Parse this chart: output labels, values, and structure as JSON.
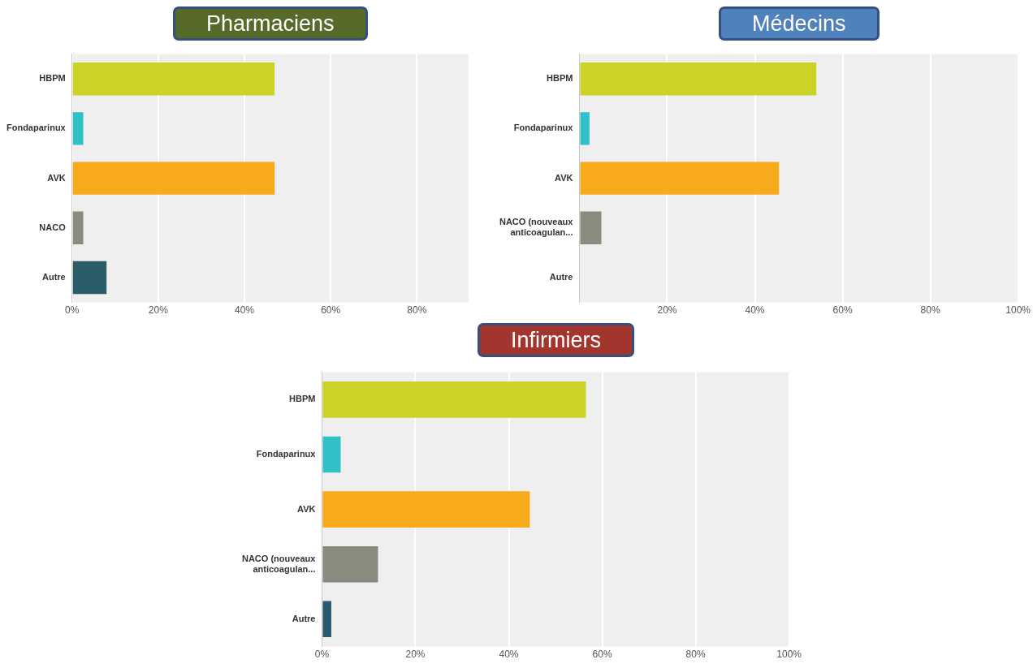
{
  "chart_data": [
    {
      "type": "bar",
      "orientation": "horizontal",
      "title": "Pharmaciens",
      "categories": [
        "HBPM",
        "Fondaparinux",
        "AVK",
        "NACO",
        "Autre"
      ],
      "values": [
        47,
        2.6,
        47,
        2.6,
        8
      ],
      "colors": [
        "#cbd324",
        "#31c0c5",
        "#f7aa1c",
        "#8b8a7f",
        "#2b5d68"
      ],
      "xlim": [
        0,
        92
      ],
      "xticks": [
        {
          "value": 0,
          "label": "0%"
        },
        {
          "value": 20,
          "label": "20%"
        },
        {
          "value": 40,
          "label": "40%"
        },
        {
          "value": 60,
          "label": "60%"
        },
        {
          "value": 80,
          "label": "80%"
        }
      ],
      "grid": "x"
    },
    {
      "type": "bar",
      "orientation": "horizontal",
      "title": "Médecins",
      "categories": [
        "HBPM",
        "Fondaparinux",
        "AVK",
        "NACO (nouveaux anticoagulan...",
        "Autre"
      ],
      "values": [
        54,
        2.3,
        45.5,
        5,
        0
      ],
      "colors": [
        "#cbd324",
        "#31c0c5",
        "#f7aa1c",
        "#8b8a7f",
        "#2b5d68"
      ],
      "xlim": [
        0,
        100
      ],
      "xticks": [
        {
          "value": 0,
          "label": null
        },
        {
          "value": 20,
          "label": "20%"
        },
        {
          "value": 40,
          "label": "40%"
        },
        {
          "value": 60,
          "label": "60%"
        },
        {
          "value": 80,
          "label": "80%"
        },
        {
          "value": 100,
          "label": "100%"
        }
      ],
      "grid": "x"
    },
    {
      "type": "bar",
      "orientation": "horizontal",
      "title": "Infirmiers",
      "categories": [
        "HBPM",
        "Fondaparinux",
        "AVK",
        "NACO (nouveaux anticoagulan...",
        "Autre"
      ],
      "values": [
        56.5,
        4,
        44.5,
        12,
        2
      ],
      "colors": [
        "#cbd324",
        "#31c0c5",
        "#f7aa1c",
        "#8b8a7f",
        "#2a5a70"
      ],
      "xlim": [
        0,
        100
      ],
      "xticks": [
        {
          "value": 0,
          "label": "0%"
        },
        {
          "value": 20,
          "label": "20%"
        },
        {
          "value": 40,
          "label": "40%"
        },
        {
          "value": 60,
          "label": "60%"
        },
        {
          "value": 80,
          "label": "80%"
        },
        {
          "value": 100,
          "label": "100%"
        }
      ],
      "grid": "x"
    }
  ]
}
